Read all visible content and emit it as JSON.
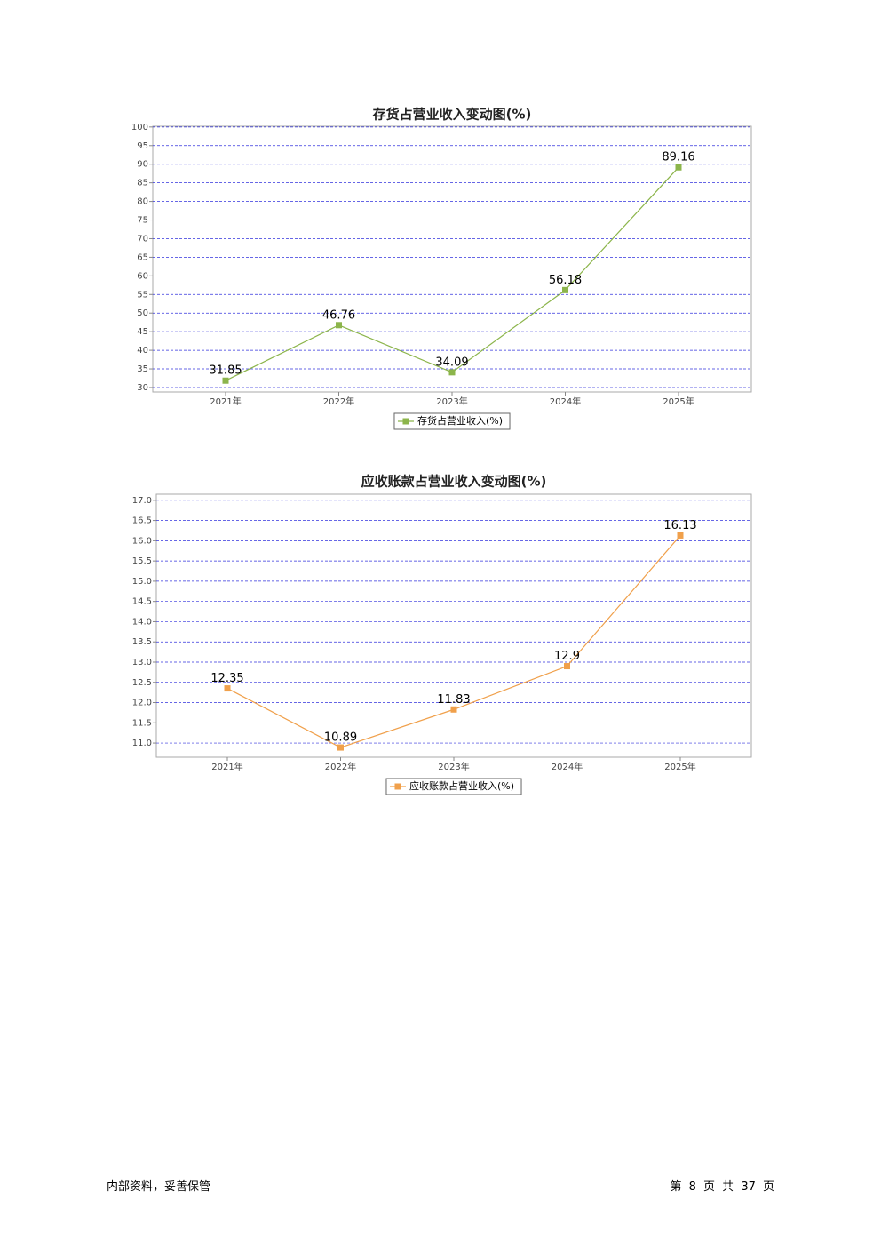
{
  "chart_data": [
    {
      "type": "line",
      "title": "存货占营业收入变动图(%)",
      "categories": [
        "2021年",
        "2022年",
        "2023年",
        "2024年",
        "2025年"
      ],
      "series": [
        {
          "name": "存货占营业收入(%)",
          "color": "#8cb54b",
          "values": [
            31.85,
            46.76,
            34.09,
            56.18,
            89.16
          ]
        }
      ],
      "ylim": [
        28.8,
        100.2
      ],
      "yticks": [
        30,
        35,
        40,
        45,
        50,
        55,
        60,
        65,
        70,
        75,
        80,
        85,
        90,
        95,
        100
      ],
      "grid": true,
      "legend": "bottom"
    },
    {
      "type": "line",
      "title": "应收账款占营业收入变动图(%)",
      "categories": [
        "2021年",
        "2022年",
        "2023年",
        "2024年",
        "2025年"
      ],
      "series": [
        {
          "name": "应收账款占营业收入(%)",
          "color": "#f0a04b",
          "values": [
            12.35,
            10.89,
            11.83,
            12.9,
            16.13
          ]
        }
      ],
      "ylim": [
        10.65,
        17.15
      ],
      "yticks": [
        {
          "value": 11,
          "label": "11.0"
        },
        11.5,
        {
          "value": 12,
          "label": "12.0"
        },
        12.5,
        {
          "value": 13,
          "label": "13.0"
        },
        13.5,
        {
          "value": 14,
          "label": "14.0"
        },
        14.5,
        {
          "value": 15,
          "label": "15.0"
        },
        15.5,
        {
          "value": 16,
          "label": "16.0"
        },
        16.5,
        {
          "value": 17,
          "label": "17.0"
        }
      ],
      "grid": true,
      "legend": "bottom"
    }
  ],
  "footer": {
    "left": "内部资料，妥善保管",
    "right": "第 8 页 共 37 页"
  }
}
